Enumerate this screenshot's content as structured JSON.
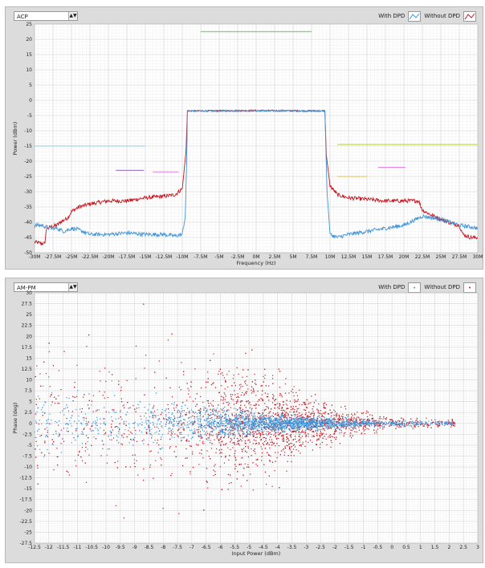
{
  "chart_data": [
    {
      "type": "line",
      "selector_value": "ACP",
      "legend": [
        {
          "label": "With DPD",
          "color": "#3f95d9"
        },
        {
          "label": "Without DPD",
          "color": "#c8141e"
        }
      ],
      "xlabel": "Frequency (Hz)",
      "ylabel": "Power (dBm)",
      "xlim": [
        -30,
        30
      ],
      "ylim": [
        -50,
        25
      ],
      "x_ticks": [
        "-30M",
        "-27.5M",
        "-25M",
        "-22.5M",
        "-20M",
        "-17.5M",
        "-15M",
        "-12.5M",
        "-10M",
        "-7.5M",
        "-5M",
        "-2.5M",
        "0M",
        "2.5M",
        "5M",
        "7.5M",
        "10M",
        "12.5M",
        "15M",
        "17.5M",
        "20M",
        "22.5M",
        "25M",
        "27.5M",
        "30M"
      ],
      "y_ticks": [
        "25",
        "20",
        "15",
        "10",
        "5",
        "0",
        "-5",
        "-10",
        "-15",
        "-20",
        "-25",
        "-30",
        "-35",
        "-40",
        "-45",
        "-50"
      ],
      "series": [
        {
          "name": "Without DPD",
          "color": "#c8141e",
          "points": [
            [
              -30,
              -46.5
            ],
            [
              -29,
              -47
            ],
            [
              -28.6,
              -47
            ],
            [
              -28.4,
              -42
            ],
            [
              -27,
              -41
            ],
            [
              -26.5,
              -40
            ],
            [
              -25.5,
              -38.5
            ],
            [
              -25,
              -36.5
            ],
            [
              -24,
              -35
            ],
            [
              -22.5,
              -34
            ],
            [
              -20,
              -33
            ],
            [
              -17.5,
              -33
            ],
            [
              -15,
              -32
            ],
            [
              -12.5,
              -31.5
            ],
            [
              -11,
              -31
            ],
            [
              -10,
              -29
            ],
            [
              -9.5,
              -17
            ],
            [
              -9.3,
              -3.5
            ],
            [
              -7.5,
              -3.5
            ],
            [
              0,
              -3.4
            ],
            [
              7.5,
              -3.5
            ],
            [
              9.3,
              -3.5
            ],
            [
              9.5,
              -18
            ],
            [
              10,
              -28
            ],
            [
              11,
              -31
            ],
            [
              12.5,
              -32
            ],
            [
              15,
              -32.5
            ],
            [
              17.5,
              -33
            ],
            [
              20,
              -33
            ],
            [
              22,
              -33
            ],
            [
              22.5,
              -36
            ],
            [
              24,
              -38
            ],
            [
              26,
              -40
            ],
            [
              27.5,
              -41
            ],
            [
              28,
              -44
            ],
            [
              29,
              -45
            ],
            [
              30,
              -45
            ]
          ]
        },
        {
          "name": "With DPD",
          "color": "#3f95d9",
          "points": [
            [
              -30,
              -41
            ],
            [
              -29,
              -41
            ],
            [
              -28,
              -42
            ],
            [
              -27,
              -42
            ],
            [
              -26,
              -43
            ],
            [
              -25,
              -42
            ],
            [
              -24,
              -42.5
            ],
            [
              -22.5,
              -44
            ],
            [
              -20,
              -44
            ],
            [
              -17.5,
              -43.5
            ],
            [
              -15,
              -44
            ],
            [
              -12.5,
              -44
            ],
            [
              -11,
              -44.5
            ],
            [
              -10,
              -44
            ],
            [
              -9.6,
              -38
            ],
            [
              -9.4,
              -20
            ],
            [
              -9.3,
              -3.5
            ],
            [
              -7.5,
              -3.5
            ],
            [
              0,
              -3.4
            ],
            [
              7.5,
              -3.5
            ],
            [
              9.3,
              -3.5
            ],
            [
              9.6,
              -30
            ],
            [
              10,
              -44
            ],
            [
              11,
              -45
            ],
            [
              12.5,
              -44
            ],
            [
              15,
              -43
            ],
            [
              17.5,
              -42
            ],
            [
              20,
              -41
            ],
            [
              22.5,
              -38
            ],
            [
              25,
              -39
            ],
            [
              27.5,
              -41
            ],
            [
              29,
              -41.5
            ],
            [
              30,
              -42
            ]
          ]
        }
      ],
      "limit_lines": [
        {
          "x": [
            -30,
            -15
          ],
          "y": -15,
          "color": "#a8d4ea"
        },
        {
          "x": [
            -7.5,
            7.5
          ],
          "y": 22.5,
          "color": "#7ed46a"
        },
        {
          "x": [
            -19,
            -15.2
          ],
          "y": -23,
          "color": "#a87ed0"
        },
        {
          "x": [
            -14,
            -10.5
          ],
          "y": -23.5,
          "color": "#e48ae0"
        },
        {
          "x": [
            11,
            30
          ],
          "y": -14.5,
          "color": "#c8d858"
        },
        {
          "x": [
            11,
            15
          ],
          "y": -25,
          "color": "#e6c86a"
        },
        {
          "x": [
            16.5,
            20.2
          ],
          "y": -22,
          "color": "#e08ae6"
        }
      ]
    },
    {
      "type": "scatter",
      "selector_value": "AM-PM",
      "legend": [
        {
          "label": "With DPD",
          "color": "#3f95d9"
        },
        {
          "label": "Without DPD",
          "color": "#c8141e"
        }
      ],
      "xlabel": "Input Power (dBm)",
      "ylabel": "Phase (deg)",
      "xlim": [
        -12.5,
        3
      ],
      "ylim": [
        -27.5,
        30
      ],
      "x_ticks": [
        "-12.5",
        "-12",
        "-11.5",
        "-11",
        "-10.5",
        "-10",
        "-9.5",
        "-9",
        "-8.5",
        "-8",
        "-7.5",
        "-7",
        "-6.5",
        "-6",
        "-5.5",
        "-5",
        "-4.5",
        "-4",
        "-3.5",
        "-3",
        "-2.5",
        "-2",
        "-1.5",
        "-1",
        "-0.5",
        "0",
        "0.5",
        "1",
        "1.5",
        "2",
        "2.5",
        "3"
      ],
      "y_ticks": [
        "30",
        "27.5",
        "25",
        "22.5",
        "20",
        "17.5",
        "15",
        "12.5",
        "10",
        "7.5",
        "5",
        "2.5",
        "0",
        "-2.5",
        "-5",
        "-7.5",
        "-10",
        "-12.5",
        "-15",
        "-17.5",
        "-20",
        "-22.5",
        "-25",
        "-27.5"
      ],
      "series": [
        {
          "name": "Without DPD",
          "color": "#c8141e",
          "spread_profile": [
            [
              -12.5,
              14
            ],
            [
              -11,
              13
            ],
            [
              -10,
              12
            ],
            [
              -8,
              11
            ],
            [
              -6,
              10
            ],
            [
              -5,
              9
            ],
            [
              -4,
              8
            ],
            [
              -3,
              5
            ],
            [
              -2,
              3
            ],
            [
              -1,
              2
            ],
            [
              0,
              1.2
            ],
            [
              1,
              0.8
            ],
            [
              2,
              0.6
            ]
          ],
          "density_peak_x": -4
        },
        {
          "name": "With DPD",
          "color": "#3f95d9",
          "spread_profile": [
            [
              -12.5,
              6
            ],
            [
              -11,
              4.5
            ],
            [
              -9,
              3.5
            ],
            [
              -7,
              2.5
            ],
            [
              -5,
              1.8
            ],
            [
              -4,
              1.3
            ],
            [
              -3,
              1
            ],
            [
              -2,
              0.8
            ],
            [
              -1,
              0.6
            ],
            [
              0,
              0.5
            ],
            [
              1,
              0.4
            ],
            [
              2,
              0.3
            ]
          ],
          "density_peak_x": -4
        }
      ]
    }
  ]
}
